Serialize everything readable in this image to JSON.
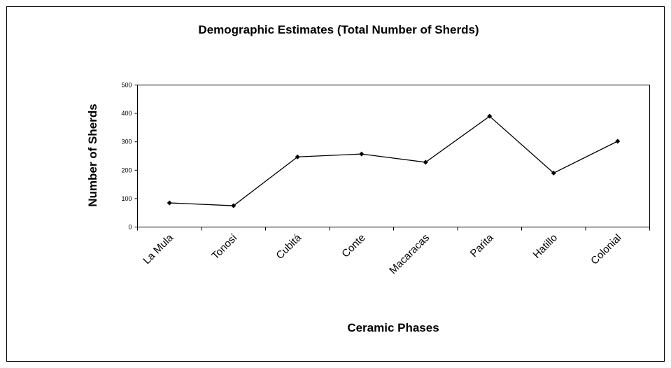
{
  "chart_data": {
    "type": "line",
    "title": "Demographic Estimates (Total Number of Sherds)",
    "x_label": "Ceramic Phases",
    "y_label": "Number of Sherds",
    "categories": [
      "La Mula",
      "Tonosí",
      "Cubitá",
      "Conte",
      "Macaracas",
      "Parita",
      "Hatillo",
      "Colonial"
    ],
    "values": [
      85,
      75,
      247,
      257,
      228,
      390,
      190,
      302
    ],
    "color": "#000000",
    "ylim": [
      0,
      500
    ],
    "yticks": [
      0,
      100,
      200,
      300,
      400,
      500
    ],
    "grid": false
  }
}
